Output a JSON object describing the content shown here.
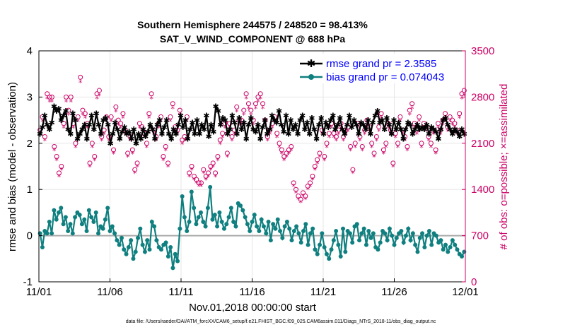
{
  "chart_data": {
    "type": "line",
    "title": "Southern Hemisphere 244575 / 248520 = 98.413%",
    "subtitle": "SAT_V_WIND_COMPONENT @ 688 hPa",
    "xlabel": "Nov.01,2018 00:00:00 start",
    "ylabel_left": "rmse and bias (model - observation)",
    "ylabel_right": "# of obs: o=possible; ×=assimilated",
    "footnote": "data file: /Users/raeder/DAI/ATM_forcXX/CAM6_setup/f.e21.FHIST_BGC.f09_025.CAM6assim.011/Diags_NTrS_2018-11/obs_diag_output.nc",
    "x_ticks": [
      "11/01",
      "11/06",
      "11/11",
      "11/16",
      "11/21",
      "11/26",
      "12/01"
    ],
    "xlim": [
      0,
      30
    ],
    "ylim_left": [
      -1,
      4
    ],
    "y_ticks_left": [
      "-1",
      "0",
      "1",
      "2",
      "3",
      "4"
    ],
    "ylim_right": [
      0,
      3500
    ],
    "y_ticks_right": [
      "0",
      "700",
      "1400",
      "2100",
      "2800",
      "3500"
    ],
    "colors": {
      "rmse": "#000000",
      "bias": "#0f7f7f",
      "obs": "#cc0066",
      "zero_line": "#aaaaaa",
      "grid": "#e6e6e6",
      "legend_text": "#0000ff"
    },
    "series": [
      {
        "name": "rmse grand pr = 2.3585",
        "axis": "left",
        "values": [
          2.2,
          2.35,
          2.6,
          2.4,
          2.3,
          2.45,
          2.8,
          2.7,
          2.75,
          2.5,
          2.6,
          2.7,
          2.3,
          2.2,
          2.65,
          2.5,
          2.1,
          2.2,
          2.3,
          2.4,
          2.1,
          2.4,
          2.6,
          2.3,
          2.65,
          2.4,
          2.2,
          2.5,
          2.55,
          2.4,
          2.0,
          2.2,
          2.45,
          2.3,
          2.1,
          2.25,
          2.35,
          2.2,
          2.25,
          2.1,
          2.3,
          2.0,
          2.2,
          2.1,
          2.3,
          2.15,
          2.25,
          2.4,
          2.3,
          2.1,
          2.4,
          2.5,
          2.2,
          2.35,
          2.5,
          2.2,
          2.1,
          2.3,
          2.2,
          2.4,
          2.6,
          2.35,
          2.5,
          2.1,
          2.3,
          2.45,
          2.2,
          2.5,
          2.2,
          2.4,
          2.3,
          2.6,
          2.15,
          2.4,
          2.25,
          2.8,
          2.7,
          2.4,
          2.55,
          2.5,
          2.2,
          2.3,
          2.6,
          2.45,
          2.2,
          2.55,
          2.3,
          2.45,
          2.1,
          2.4,
          2.55,
          2.3,
          2.25,
          2.4,
          2.1,
          2.35,
          2.5,
          2.2,
          2.3,
          2.6,
          2.5,
          2.45,
          2.7,
          2.4,
          2.25,
          2.6,
          2.2,
          2.5,
          2.3,
          2.4,
          2.2,
          2.5,
          2.6,
          2.3,
          2.45,
          2.2,
          2.55,
          2.3,
          2.1,
          2.4,
          2.55,
          2.2,
          2.45,
          2.35,
          2.5,
          2.6,
          2.3,
          2.4,
          2.55,
          2.3,
          2.2,
          2.4,
          2.6,
          2.35,
          2.5,
          2.4,
          2.2,
          2.45,
          2.4,
          2.3,
          2.5,
          2.2,
          2.45,
          2.6,
          2.7,
          2.45,
          2.5,
          2.3,
          2.55,
          2.4,
          2.2,
          2.5,
          2.3,
          2.45,
          2.3,
          2.1,
          2.3,
          2.45,
          2.4,
          2.2,
          2.3,
          2.4,
          2.3,
          2.35,
          2.3,
          2.4,
          2.2,
          2.35,
          2.3,
          2.25,
          2.1,
          2.3,
          2.5,
          2.55,
          2.4,
          2.3,
          2.2,
          2.3,
          2.25,
          2.15,
          2.3,
          2.2
        ]
      },
      {
        "name": "bias grand pr = 0.074043",
        "axis": "left",
        "values": [
          0.05,
          -0.25,
          0.1,
          0.05,
          0.3,
          0.05,
          0.55,
          0.35,
          0.5,
          0.6,
          0.25,
          0.4,
          0.1,
          0.25,
          0.05,
          0.4,
          0.5,
          0.45,
          0.25,
          0.35,
          0.1,
          0.55,
          0.4,
          0.3,
          0.5,
          0.05,
          0.2,
          0.15,
          0.35,
          0.6,
          0.1,
          0.2,
          0.05,
          -0.1,
          -0.2,
          -0.05,
          -0.3,
          -0.4,
          -0.25,
          -0.1,
          -0.5,
          -0.35,
          -0.05,
          0.15,
          -0.2,
          -0.35,
          -0.1,
          -0.3,
          0.3,
          0.2,
          -0.1,
          -0.25,
          -0.3,
          -0.2,
          -0.15,
          -0.45,
          -0.25,
          -0.7,
          -0.4,
          -0.55,
          0.15,
          0.85,
          0.4,
          0.1,
          0.3,
          0.95,
          0.6,
          0.25,
          0.4,
          0.5,
          0.3,
          0.2,
          0.6,
          1.05,
          0.35,
          0.45,
          0.2,
          0.5,
          0.3,
          0.15,
          0.25,
          0.4,
          0.6,
          0.3,
          0.2,
          0.7,
          0.65,
          0.55,
          0.4,
          0.25,
          0.1,
          0.3,
          0.45,
          0.2,
          0.1,
          0.35,
          0.2,
          0.05,
          0.3,
          -0.1,
          0.25,
          0.15,
          0.35,
          0.1,
          -0.05,
          0.2,
          0.3,
          0.15,
          -0.1,
          0.1,
          0.2,
          0.05,
          -0.15,
          0.1,
          0.25,
          -0.2,
          0.05,
          0.15,
          -0.3,
          -0.4,
          -0.2,
          0.05,
          -0.25,
          -0.4,
          -0.5,
          -0.3,
          -0.1,
          0.1,
          -0.2,
          -0.45,
          0.15,
          -0.35,
          0.1,
          0.05,
          -0.15,
          0.2,
          0.25,
          -0.1,
          0.05,
          0.15,
          -0.2,
          0.1,
          -0.05,
          0.05,
          -0.25,
          -0.3,
          -0.15,
          0.1,
          0.05,
          -0.1,
          0.15,
          0.0,
          -0.2,
          -0.05,
          0.05,
          0.1,
          -0.15,
          0.0,
          0.15,
          -0.1,
          0.05,
          -0.2,
          -0.35,
          -0.05,
          0.05,
          -0.25,
          0.0,
          0.1,
          -0.2,
          0.05,
          0.0,
          -0.15,
          -0.1,
          -0.3,
          -0.2,
          -0.35,
          -0.25,
          -0.1,
          -0.2,
          -0.3,
          -0.4,
          -0.45,
          -0.35
        ]
      },
      {
        "name": "obs possible (o)",
        "axis": "right",
        "values": [
          2300,
          2500,
          2200,
          2850,
          2800,
          2800,
          2050,
          1900,
          1650,
          1750,
          2400,
          2800,
          2600,
          2800,
          2400,
          2100,
          2500,
          3100,
          2600,
          2550,
          2400,
          1800,
          2100,
          1900,
          2850,
          2900,
          2200,
          2300,
          2500,
          2200,
          2500,
          2000,
          2650,
          2450,
          2400,
          2550,
          2300,
          1950,
          2200,
          2000,
          1700,
          1800,
          2400,
          2350,
          2250,
          2100,
          2550,
          2850,
          2300,
          2200,
          2400,
          2500,
          1900,
          2050,
          1800,
          2500,
          2700,
          2350,
          2300,
          2600,
          2150,
          2200,
          2500,
          1650,
          1750,
          1600,
          1550,
          1500,
          1500,
          1700,
          1600,
          1650,
          1750,
          1800,
          1650,
          1900,
          2150,
          2250,
          2400,
          1950,
          2400,
          2200,
          2300,
          2650,
          2450,
          2450,
          2600,
          2850,
          2700,
          2600,
          2450,
          2700,
          2800,
          2850,
          2700,
          2450,
          2200,
          2300,
          2400,
          2500,
          2250,
          2100,
          2000,
          1900,
          1950,
          2000,
          2050,
          1500,
          1400,
          1300,
          1250,
          1350,
          1300,
          1450,
          1500,
          1600,
          1750,
          1850,
          1950,
          2300,
          1900,
          2100,
          2250,
          2400,
          2250,
          2200,
          2300,
          2400,
          2200,
          2300,
          2350,
          2050,
          1700,
          2100,
          2400,
          2200,
          2050,
          2300,
          2450,
          2350,
          2100,
          1950,
          2200,
          2350,
          2550,
          2000,
          2100,
          2400,
          2300,
          1800,
          2250,
          2100,
          2500,
          2300,
          2200,
          2050,
          2600,
          2700,
          2400,
          2300,
          2500,
          2100,
          2400,
          2350,
          2200,
          2100,
          2300,
          2000,
          2400,
          2300,
          2450,
          2550,
          2350,
          2500,
          2450,
          2400,
          2300,
          2550,
          2850,
          2900
        ]
      }
    ],
    "assimilated_ratio": 0.984
  }
}
